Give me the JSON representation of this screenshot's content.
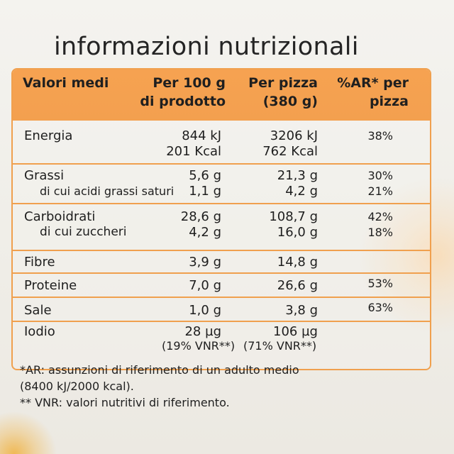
{
  "title": "informazioni nutrizionali",
  "header": {
    "label": "Valori medi",
    "col1": [
      "Per 100 g",
      "di prodotto"
    ],
    "col2": [
      "Per pizza",
      "(380 g)"
    ],
    "col3": [
      "%AR* per",
      "pizza"
    ]
  },
  "rows": {
    "energia": {
      "label": "Energia",
      "c1": [
        "844 kJ",
        "201 Kcal"
      ],
      "c2": [
        "3206 kJ",
        "762 Kcal"
      ],
      "c3": "38%"
    },
    "grassi": {
      "label": "Grassi",
      "c1": "5,6 g",
      "c2": "21,3 g",
      "c3": "30%",
      "sub_label": "di cui acidi grassi saturi",
      "sub_c1": "1,1 g",
      "sub_c2": "4,2 g",
      "sub_c3": "21%"
    },
    "carboidrati": {
      "label": "Carboidrati",
      "c1": "28,6 g",
      "c2": "108,7 g",
      "c3": "42%",
      "sub_label": "di cui zuccheri",
      "sub_c1": "4,2 g",
      "sub_c2": "16,0 g",
      "sub_c3": "18%"
    },
    "fibre": {
      "label": "Fibre",
      "c1": "3,9 g",
      "c2": "14,8 g"
    },
    "proteine": {
      "label": "Proteine",
      "c1": "7,0 g",
      "c2": "26,6 g",
      "c3": "53%"
    },
    "sale": {
      "label": "Sale",
      "c1": "1,0 g",
      "c2": "3,8 g",
      "c3": "63%"
    },
    "iodio": {
      "label": "Iodio",
      "c1": [
        "28 µg",
        "(19% VNR**)"
      ],
      "c2": [
        "106 µg",
        "(71% VNR**)"
      ]
    }
  },
  "footnotes": [
    "*AR: assunzioni di riferimento di un adulto medio",
    "(8400 kJ/2000 kcal).",
    "** VNR: valori nutritivi di riferimento."
  ],
  "colors": {
    "accent": "#f3a04f",
    "text": "#1e1e1e",
    "background": "#f1efe9"
  }
}
